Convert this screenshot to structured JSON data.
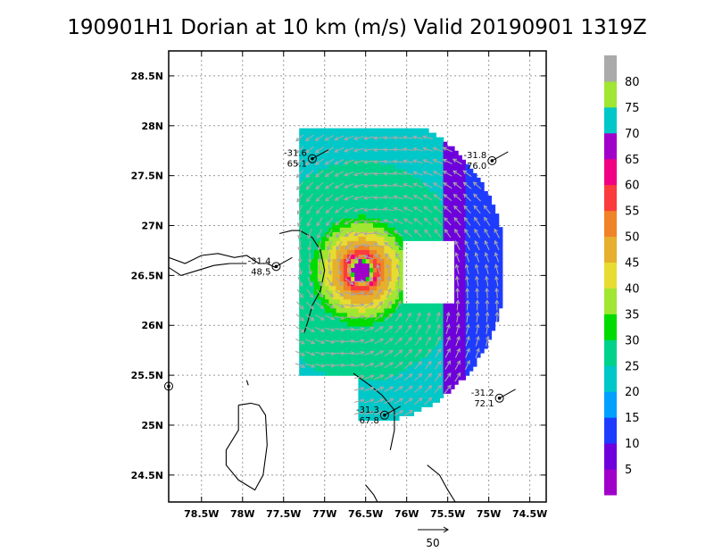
{
  "chart_data": {
    "type": "heatmap",
    "title": "190901H1 Dorian at 10 km (m/s) Valid 20190901  1319Z",
    "xlim": [
      -78.9,
      -74.3
    ],
    "ylim": [
      24.23,
      28.75
    ],
    "x_ticks": [
      -78.5,
      -78,
      -77.5,
      -77,
      -76.5,
      -76,
      -75.5,
      -75,
      -74.5
    ],
    "x_tick_labels": [
      "78.5W",
      "78W",
      "77.5W",
      "77W",
      "76.5W",
      "76W",
      "75.5W",
      "75W",
      "74.5W"
    ],
    "y_ticks": [
      24.5,
      25,
      25.5,
      26,
      26.5,
      27,
      27.5,
      28,
      28.5
    ],
    "y_tick_labels": [
      "24.5N",
      "25N",
      "25.5N",
      "26N",
      "26.5N",
      "27N",
      "27.5N",
      "28N",
      "28.5N"
    ],
    "grid": true,
    "storm_center": {
      "lon": -76.55,
      "lat": 26.55
    },
    "colorbar": {
      "labels": [
        "5",
        "10",
        "15",
        "20",
        "25",
        "30",
        "35",
        "40",
        "45",
        "50",
        "55",
        "60",
        "65",
        "70",
        "75",
        "80"
      ],
      "bins": [
        {
          "max": 5,
          "color": "#a000c8"
        },
        {
          "max": 10,
          "color": "#6e00dc"
        },
        {
          "max": 15,
          "color": "#1e3cff"
        },
        {
          "max": 20,
          "color": "#00a0ff"
        },
        {
          "max": 25,
          "color": "#00c8c8"
        },
        {
          "max": 30,
          "color": "#00d28c"
        },
        {
          "max": 35,
          "color": "#00dc00"
        },
        {
          "max": 40,
          "color": "#a0e632"
        },
        {
          "max": 45,
          "color": "#e6dc32"
        },
        {
          "max": 50,
          "color": "#e6af2d"
        },
        {
          "max": 55,
          "color": "#f08228"
        },
        {
          "max": 60,
          "color": "#fa3c3c"
        },
        {
          "max": 65,
          "color": "#f00082"
        },
        {
          "max": 70,
          "color": "#a000c8"
        },
        {
          "max": 75,
          "color": "#00c8c8"
        },
        {
          "max": 80,
          "color": "#a0e632"
        },
        {
          "max": 85,
          "color": "#aaaaaa"
        }
      ]
    },
    "stations": [
      {
        "lon": -77.15,
        "lat": 27.67,
        "top": "-31.6",
        "bottom": "65.1"
      },
      {
        "lon": -74.96,
        "lat": 27.65,
        "top": "-31.8",
        "bottom": "76.0"
      },
      {
        "lon": -77.59,
        "lat": 26.59,
        "top": "-31.4",
        "bottom": "48.5"
      },
      {
        "lon": -76.27,
        "lat": 25.1,
        "top": "-31.3",
        "bottom": "67.8"
      },
      {
        "lon": -74.87,
        "lat": 25.27,
        "top": "-31.2",
        "bottom": "72.1"
      },
      {
        "lon": -78.9,
        "lat": 25.39,
        "top": "",
        "bottom": ""
      }
    ],
    "reference_vector": {
      "label": "50"
    }
  }
}
